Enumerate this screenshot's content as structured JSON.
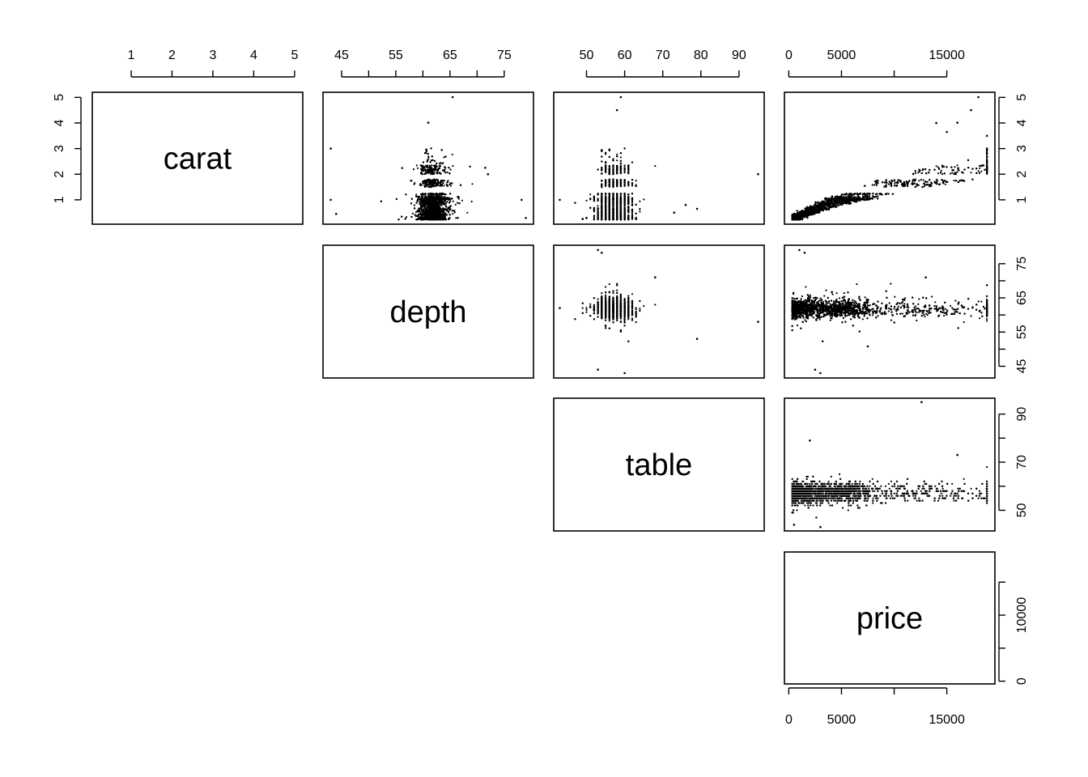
{
  "chart_data": {
    "type": "scatter",
    "matrix": "upper-panel scatterplot matrix",
    "variables": [
      {
        "name": "carat",
        "range": [
          0.2,
          5.01
        ],
        "ticks": [
          1,
          2,
          3,
          4,
          5
        ],
        "tick_labels": [
          "1",
          "2",
          "3",
          "4",
          "5"
        ]
      },
      {
        "name": "depth",
        "range": [
          43,
          79
        ],
        "ticks": [
          45,
          50,
          55,
          60,
          65,
          70,
          75
        ],
        "tick_labels": [
          "45",
          "",
          "55",
          "",
          "65",
          "",
          "75"
        ]
      },
      {
        "name": "table",
        "range": [
          43,
          95
        ],
        "ticks": [
          50,
          60,
          70,
          80,
          90
        ],
        "tick_labels": [
          "50",
          "60",
          "70",
          "80",
          "90"
        ]
      },
      {
        "name": "price",
        "range": [
          326,
          18823
        ],
        "ticks": [
          0,
          5000,
          10000,
          15000
        ],
        "tick_labels": [
          "0",
          "5000",
          "",
          "15000"
        ]
      }
    ],
    "right_axis_ticks": {
      "table": {
        "ticks": [
          50,
          60,
          70,
          80,
          90
        ],
        "tick_labels": [
          "50",
          "",
          "70",
          "",
          "90"
        ]
      },
      "price": {
        "ticks": [
          0,
          5000,
          10000,
          15000
        ],
        "tick_labels": [
          "0",
          "",
          "10000",
          ""
        ]
      }
    },
    "outliers": {
      "carat_depth": [
        [
          4.01,
          61.0
        ],
        [
          5.01,
          65.5
        ],
        [
          0.45,
          44.0
        ],
        [
          1.0,
          43.0
        ],
        [
          3.0,
          43.0
        ],
        [
          0.29,
          79.0
        ],
        [
          1.0,
          78.2
        ],
        [
          2.0,
          72.0
        ],
        [
          2.25,
          71.5
        ]
      ],
      "carat_table": [
        [
          4.5,
          58.0
        ],
        [
          5.01,
          59.0
        ],
        [
          1.0,
          43.0
        ],
        [
          0.29,
          50.0
        ],
        [
          2.0,
          95.0
        ],
        [
          0.5,
          73.0
        ],
        [
          0.65,
          79.0
        ],
        [
          0.8,
          76.0
        ]
      ],
      "depth_table": [
        [
          62.0,
          43.0
        ],
        [
          58.0,
          95.0
        ],
        [
          79.0,
          53.0
        ],
        [
          53.0,
          79.0
        ],
        [
          44.0,
          53.0
        ],
        [
          43.0,
          60.0
        ],
        [
          78.2,
          54.0
        ],
        [
          71.0,
          68.0
        ]
      ],
      "price_depth": [
        [
          2500,
          44.0
        ],
        [
          3000,
          43.0
        ],
        [
          1000,
          79.0
        ],
        [
          1500,
          78.2
        ],
        [
          7500,
          50.8
        ],
        [
          13000,
          71.0
        ]
      ],
      "price_table": [
        [
          3000,
          43.0
        ],
        [
          12600,
          95.0
        ],
        [
          2000,
          79.0
        ],
        [
          500,
          44.0
        ],
        [
          16000,
          73.0
        ]
      ],
      "price_carat": [
        [
          18000,
          5.01
        ],
        [
          17300,
          4.5
        ],
        [
          16000,
          4.01
        ],
        [
          14000,
          4.0
        ],
        [
          15000,
          3.65
        ],
        [
          18800,
          3.5
        ]
      ]
    },
    "title": "",
    "grid": false
  }
}
